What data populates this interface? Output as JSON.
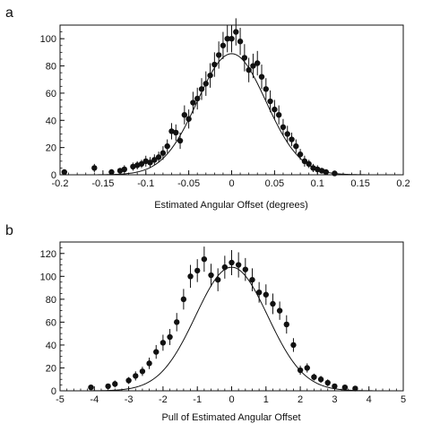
{
  "chart_data": [
    {
      "type": "scatter",
      "panel_label": "a",
      "title": "",
      "xlabel": "Estimated Angular Offset (degrees)",
      "ylabel": "",
      "xlim": [
        -0.2,
        0.2
      ],
      "ylim": [
        0,
        110
      ],
      "x_ticks": [
        "-0.2",
        "-0.15",
        "-0.1",
        "-0.05",
        "0",
        "0.05",
        "0.1",
        "0.15",
        "0.2"
      ],
      "y_ticks": [
        "0",
        "20",
        "40",
        "60",
        "80",
        "100"
      ],
      "grid": false,
      "legend": "none",
      "series": [
        {
          "style": "points-with-error-bars",
          "x": [
            -0.195,
            -0.16,
            -0.14,
            -0.13,
            -0.125,
            -0.115,
            -0.11,
            -0.105,
            -0.1,
            -0.095,
            -0.09,
            -0.085,
            -0.08,
            -0.075,
            -0.07,
            -0.065,
            -0.06,
            -0.055,
            -0.05,
            -0.045,
            -0.04,
            -0.035,
            -0.03,
            -0.025,
            -0.02,
            -0.015,
            -0.01,
            -0.005,
            0,
            0.005,
            0.01,
            0.015,
            0.02,
            0.025,
            0.03,
            0.035,
            0.04,
            0.045,
            0.05,
            0.055,
            0.06,
            0.065,
            0.07,
            0.075,
            0.08,
            0.085,
            0.09,
            0.095,
            0.1,
            0.105,
            0.11,
            0.12
          ],
          "y": [
            2,
            5,
            2,
            3,
            4,
            6,
            7,
            8,
            10,
            9,
            11,
            13,
            16,
            21,
            32,
            31,
            25,
            44,
            41,
            53,
            56,
            63,
            67,
            73,
            81,
            88,
            95,
            100,
            100,
            105,
            98,
            86,
            77,
            80,
            82,
            72,
            63,
            54,
            48,
            44,
            35,
            30,
            26,
            21,
            15,
            10,
            8,
            5,
            4,
            3,
            2,
            1
          ],
          "yerr": [
            2,
            3,
            2,
            2,
            3,
            3,
            3,
            3,
            4,
            4,
            4,
            4,
            5,
            5,
            6,
            6,
            6,
            7,
            7,
            8,
            8,
            8,
            9,
            9,
            9,
            10,
            10,
            10,
            10,
            10,
            10,
            10,
            9,
            9,
            9,
            9,
            8,
            8,
            7,
            7,
            6,
            6,
            5,
            5,
            4,
            4,
            3,
            3,
            3,
            2,
            2,
            2
          ]
        },
        {
          "style": "line",
          "name": "",
          "shape": "gaussian",
          "amplitude": 89,
          "mean": 0.0,
          "sigma": 0.04
        }
      ]
    },
    {
      "type": "scatter",
      "panel_label": "b",
      "title": "",
      "xlabel": "Pull of Estimated Angular Offset",
      "ylabel": "",
      "xlim": [
        -5,
        5
      ],
      "ylim": [
        0,
        130
      ],
      "x_ticks": [
        "-5",
        "-4",
        "-3",
        "-2",
        "-1",
        "0",
        "1",
        "2",
        "3",
        "4",
        "5"
      ],
      "y_ticks": [
        "0",
        "20",
        "40",
        "60",
        "80",
        "100",
        "120"
      ],
      "grid": false,
      "legend": "none",
      "series": [
        {
          "style": "points-with-error-bars",
          "x": [
            -4.1,
            -3.6,
            -3.4,
            -3.0,
            -2.8,
            -2.6,
            -2.4,
            -2.2,
            -2.0,
            -1.8,
            -1.6,
            -1.4,
            -1.2,
            -1.0,
            -0.8,
            -0.6,
            -0.4,
            -0.2,
            0.0,
            0.2,
            0.4,
            0.6,
            0.8,
            1.0,
            1.2,
            1.4,
            1.6,
            1.8,
            2.0,
            2.2,
            2.4,
            2.6,
            2.8,
            3.0,
            3.3,
            3.6
          ],
          "y": [
            3,
            4,
            6,
            9,
            13,
            17,
            24,
            34,
            42,
            47,
            60,
            80,
            100,
            105,
            115,
            101,
            97,
            108,
            112,
            110,
            106,
            97,
            86,
            84,
            76,
            70,
            58,
            40,
            18,
            20,
            12,
            10,
            7,
            4,
            3,
            2
          ],
          "yerr": [
            2,
            2,
            3,
            3,
            4,
            4,
            5,
            6,
            7,
            7,
            8,
            9,
            10,
            10,
            11,
            10,
            10,
            10,
            11,
            11,
            10,
            10,
            9,
            9,
            9,
            8,
            8,
            6,
            4,
            4,
            3,
            3,
            3,
            2,
            2,
            2
          ]
        },
        {
          "style": "line",
          "name": "",
          "shape": "gaussian",
          "amplitude": 108,
          "mean": 0.0,
          "sigma": 1.05
        }
      ]
    }
  ]
}
